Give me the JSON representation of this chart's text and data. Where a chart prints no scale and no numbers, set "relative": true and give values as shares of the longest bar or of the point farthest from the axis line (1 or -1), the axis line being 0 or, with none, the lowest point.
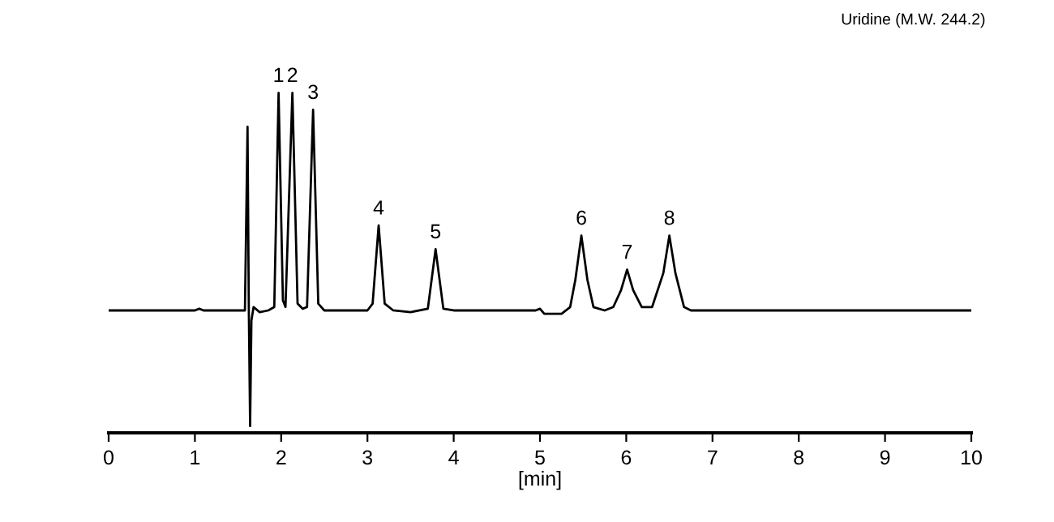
{
  "chart_data": {
    "type": "line",
    "title": "Uridine (M.W. 244.2)",
    "xlabel": "[min]",
    "relative": true,
    "xlim": [
      0,
      10
    ],
    "xticks": [
      0,
      1,
      2,
      3,
      4,
      5,
      6,
      7,
      8,
      9,
      10
    ],
    "tick_labels": "x",
    "grid": false,
    "legend": false,
    "marker": "none",
    "line_style": "solid",
    "series": [
      {
        "color": "#000000",
        "x": [
          0,
          1.0,
          1.05,
          1.1,
          1.58,
          1.61,
          1.625,
          1.64,
          1.655,
          1.68,
          1.75,
          1.85,
          1.92,
          1.97,
          2.02,
          2.05,
          2.13,
          2.19,
          2.25,
          2.3,
          2.37,
          2.43,
          2.5,
          3.0,
          3.06,
          3.13,
          3.2,
          3.3,
          3.5,
          3.7,
          3.79,
          3.88,
          4.0,
          4.95,
          5.0,
          5.05,
          5.25,
          5.35,
          5.41,
          5.48,
          5.55,
          5.62,
          5.75,
          5.85,
          5.94,
          6.01,
          6.08,
          6.18,
          6.3,
          6.43,
          6.5,
          6.57,
          6.67,
          6.75,
          10
        ],
        "values": [
          0.36,
          0.36,
          0.365,
          0.36,
          0.36,
          0.9,
          0.36,
          0.02,
          0.33,
          0.37,
          0.355,
          0.36,
          0.37,
          1.0,
          0.39,
          0.37,
          1.0,
          0.38,
          0.365,
          0.37,
          0.95,
          0.38,
          0.36,
          0.36,
          0.38,
          0.61,
          0.38,
          0.36,
          0.355,
          0.365,
          0.54,
          0.365,
          0.36,
          0.36,
          0.365,
          0.35,
          0.35,
          0.37,
          0.45,
          0.58,
          0.45,
          0.37,
          0.36,
          0.37,
          0.42,
          0.48,
          0.42,
          0.37,
          0.37,
          0.47,
          0.58,
          0.47,
          0.37,
          0.36,
          0.36
        ]
      }
    ],
    "annotations": [
      {
        "text": "1",
        "x": 1.97,
        "y": 1.0
      },
      {
        "text": "2",
        "x": 2.13,
        "y": 1.0
      },
      {
        "text": "3",
        "x": 2.37,
        "y": 0.95
      },
      {
        "text": "4",
        "x": 3.13,
        "y": 0.61
      },
      {
        "text": "5",
        "x": 3.79,
        "y": 0.54
      },
      {
        "text": "6",
        "x": 5.48,
        "y": 0.58
      },
      {
        "text": "7",
        "x": 6.01,
        "y": 0.48
      },
      {
        "text": "8",
        "x": 6.5,
        "y": 0.58
      }
    ]
  }
}
